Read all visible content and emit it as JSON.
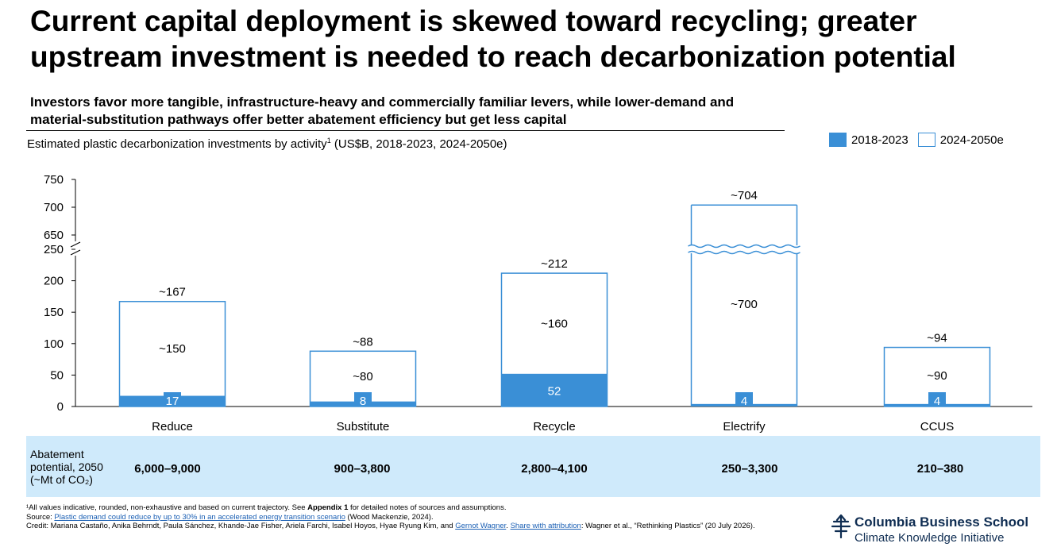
{
  "title": "Current capital deployment is skewed toward recycling; greater upstream investment is needed to reach decarbonization potential",
  "subtitle": "Investors favor more tangible, infrastructure-heavy and commercially familiar levers, while lower-demand and material-substitution pathways offer better abatement efficiency but get less capital",
  "chart_caption": "Estimated plastic decarbonization investments by activity",
  "chart_caption_sup": "1",
  "chart_caption_units": " (US$B, 2018-2023, 2024-2050e)",
  "legend": {
    "filled_label": "2018-2023",
    "open_label": "2024-2050e"
  },
  "colors": {
    "filled": "#3a8fd6",
    "outline": "#3a8fd6",
    "abatement_band": "#cfeafb",
    "logo": "#0f2d52"
  },
  "chart_data": {
    "type": "bar",
    "stacked": true,
    "axis_break": [
      250,
      650
    ],
    "y_lower_ticks": [
      0,
      50,
      100,
      150,
      200,
      250
    ],
    "y_upper_ticks": [
      650,
      700,
      750
    ],
    "categories": [
      "Reduce",
      "Substitute",
      "Recycle",
      "Electrify",
      "CCUS"
    ],
    "series": [
      {
        "name": "2018-2023",
        "values": [
          17,
          8,
          52,
          4,
          4
        ],
        "labels": [
          "17",
          "8",
          "52",
          "4",
          "4"
        ]
      },
      {
        "name": "2024-2050e",
        "values": [
          150,
          80,
          160,
          700,
          90
        ],
        "labels": [
          "~150",
          "~80",
          "~160",
          "~700",
          "~90"
        ]
      }
    ],
    "totals": [
      167,
      88,
      212,
      704,
      94
    ],
    "total_labels": [
      "~167",
      "~88",
      "~212",
      "~704",
      "~94"
    ],
    "legend_position": "top-right",
    "grid": false
  },
  "abatement": {
    "label": "Abatement\npotential, 2050\n(~Mt of CO₂)",
    "values": [
      "6,000–9,000",
      "900–3,800",
      "2,800–4,100",
      "250–3,300",
      "210–380"
    ]
  },
  "footnotes": {
    "note_prefix": "¹All values indicative, rounded, non-exhaustive and based on current trajectory. See ",
    "note_bold": "Appendix 1",
    "note_suffix": " for detailed notes of sources and assumptions.",
    "source_prefix": "Source: ",
    "source_link": "Plastic demand could reduce by up to 30% in an accelerated energy transition scenario",
    "source_suffix": " (Wood Mackenzie, 2024).",
    "credit_prefix": "Credit: Mariana Castaño, Anika Behrndt, Paula Sánchez, Khande-Jae Fisher, Ariela Farchi, Isabel Hoyos, Hyae Ryung Kim, and ",
    "credit_link1": "Gernot Wagner",
    "credit_mid": ". ",
    "credit_link2": "Share with attribution",
    "credit_suffix": ": Wagner et al., “Rethinking Plastics” (20 July 2026)."
  },
  "logo": {
    "line1": "Columbia Business School",
    "line2": "Climate Knowledge Initiative",
    "icon": "columbia-crown-icon"
  }
}
